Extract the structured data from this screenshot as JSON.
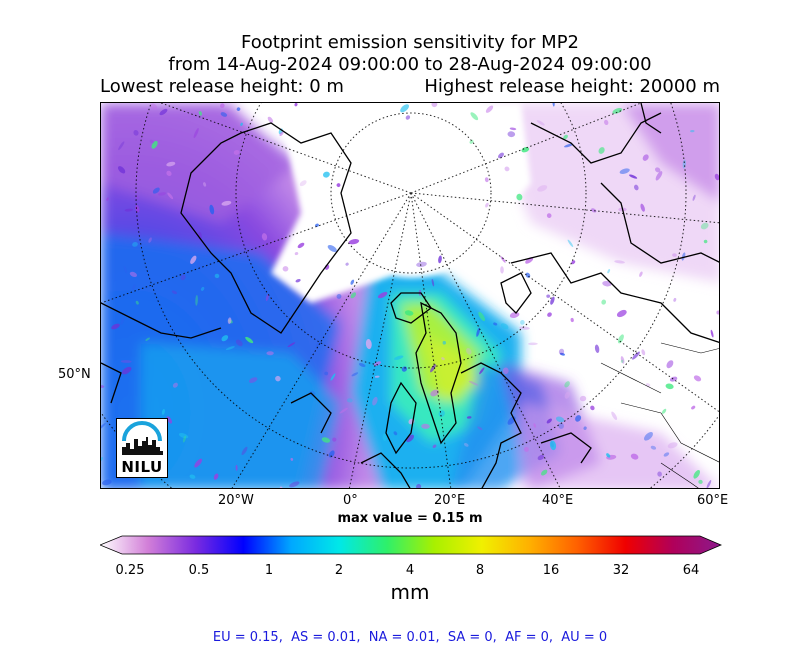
{
  "title": {
    "line1": "Footprint emission sensitivity for MP2",
    "line2": "from 14-Aug-2024 09:00:00 to 28-Aug-2024 09:00:00",
    "lowest": "Lowest release height: 0 m",
    "highest": "Highest release height: 20000 m"
  },
  "map": {
    "lat_label": "50°N",
    "lon_labels": [
      "20°W",
      "0°",
      "20°E",
      "40°E",
      "60°E"
    ],
    "projection": "polar stereographic",
    "logo_text": "NILU",
    "logo_color": "#1aa3dc"
  },
  "max_value": "max value = 0.15 m",
  "colorbar": {
    "ticks": [
      "0.25",
      "0.5",
      "1",
      "2",
      "4",
      "8",
      "16",
      "32",
      "64"
    ],
    "unit": "mm",
    "colors": [
      "#ffffff",
      "#d27fd8",
      "#7a2be0",
      "#0000ff",
      "#00a8ff",
      "#00e8e8",
      "#2ef06a",
      "#a8f000",
      "#f0f000",
      "#ffb000",
      "#ff6000",
      "#f00000",
      "#b0005a",
      "#8c1a8c"
    ]
  },
  "footer": "EU = 0.15,  AS = 0.01,  NA = 0.01,  SA = 0,  AF = 0,  AU = 0"
}
